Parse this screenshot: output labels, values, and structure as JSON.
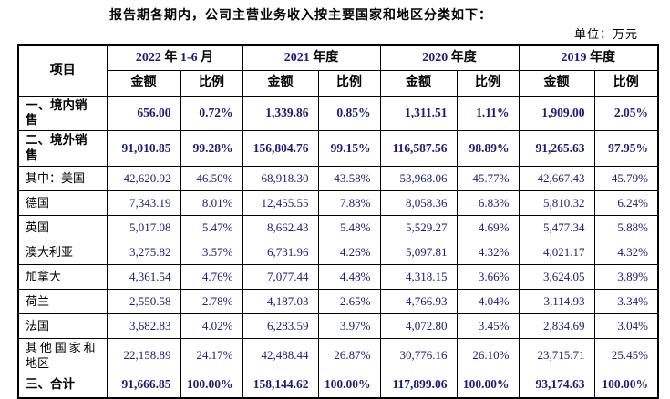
{
  "page": {
    "title": "报告期各期内，公司主营业务收入按主要国家和地区分类如下：",
    "unit_label": "单位：万元"
  },
  "table": {
    "item_header": "项目",
    "periods": [
      "2022 年 1-6 月",
      "2021 年度",
      "2020 年度",
      "2019 年度"
    ],
    "sub_headers": {
      "amount": "金额",
      "ratio": "比例"
    },
    "colors": {
      "number_text": "#1b1b7d",
      "text": "#000000",
      "border": "#000000"
    },
    "rows": [
      {
        "label": "一、境内销售",
        "bold": true,
        "tall": false,
        "values": [
          "656.00",
          "0.72%",
          "1,339.86",
          "0.85%",
          "1,311.51",
          "1.11%",
          "1,909.00",
          "2.05%"
        ]
      },
      {
        "label": "二、境外销售",
        "bold": true,
        "tall": false,
        "values": [
          "91,010.85",
          "99.28%",
          "156,804.76",
          "99.15%",
          "116,587.56",
          "98.89%",
          "91,265.63",
          "97.95%"
        ]
      },
      {
        "label": "其中：美国",
        "bold": false,
        "tall": false,
        "values": [
          "42,620.92",
          "46.50%",
          "68,918.30",
          "43.58%",
          "53,968.06",
          "45.77%",
          "42,667.43",
          "45.79%"
        ]
      },
      {
        "label": "德国",
        "bold": false,
        "tall": false,
        "values": [
          "7,343.19",
          "8.01%",
          "12,455.55",
          "7.88%",
          "8,058.36",
          "6.83%",
          "5,810.32",
          "6.24%"
        ]
      },
      {
        "label": "英国",
        "bold": false,
        "tall": false,
        "values": [
          "5,017.08",
          "5.47%",
          "8,662.43",
          "5.48%",
          "5,529.27",
          "4.69%",
          "5,477.34",
          "5.88%"
        ]
      },
      {
        "label": "澳大利亚",
        "bold": false,
        "tall": false,
        "values": [
          "3,275.82",
          "3.57%",
          "6,731.96",
          "4.26%",
          "5,097.81",
          "4.32%",
          "4,021.17",
          "4.32%"
        ]
      },
      {
        "label": "加拿大",
        "bold": false,
        "tall": false,
        "values": [
          "4,361.54",
          "4.76%",
          "7,077.44",
          "4.48%",
          "4,318.15",
          "3.66%",
          "3,624.05",
          "3.89%"
        ]
      },
      {
        "label": "荷兰",
        "bold": false,
        "tall": false,
        "values": [
          "2,550.58",
          "2.78%",
          "4,187.03",
          "2.65%",
          "4,766.93",
          "4.04%",
          "3,114.93",
          "3.34%"
        ]
      },
      {
        "label": "法国",
        "bold": false,
        "tall": false,
        "values": [
          "3,682.83",
          "4.02%",
          "6,283.59",
          "3.97%",
          "4,072.80",
          "3.45%",
          "2,834.69",
          "3.04%"
        ]
      },
      {
        "label": "其他国家和地区",
        "bold": false,
        "tall": true,
        "values": [
          "22,158.89",
          "24.17%",
          "42,488.44",
          "26.87%",
          "30,776.16",
          "26.10%",
          "23,715.71",
          "25.45%"
        ]
      },
      {
        "label": "三、合计",
        "bold": true,
        "tall": false,
        "values": [
          "91,666.85",
          "100.00%",
          "158,144.62",
          "100.00%",
          "117,899.06",
          "100.00%",
          "93,174.63",
          "100.00%"
        ]
      }
    ]
  }
}
